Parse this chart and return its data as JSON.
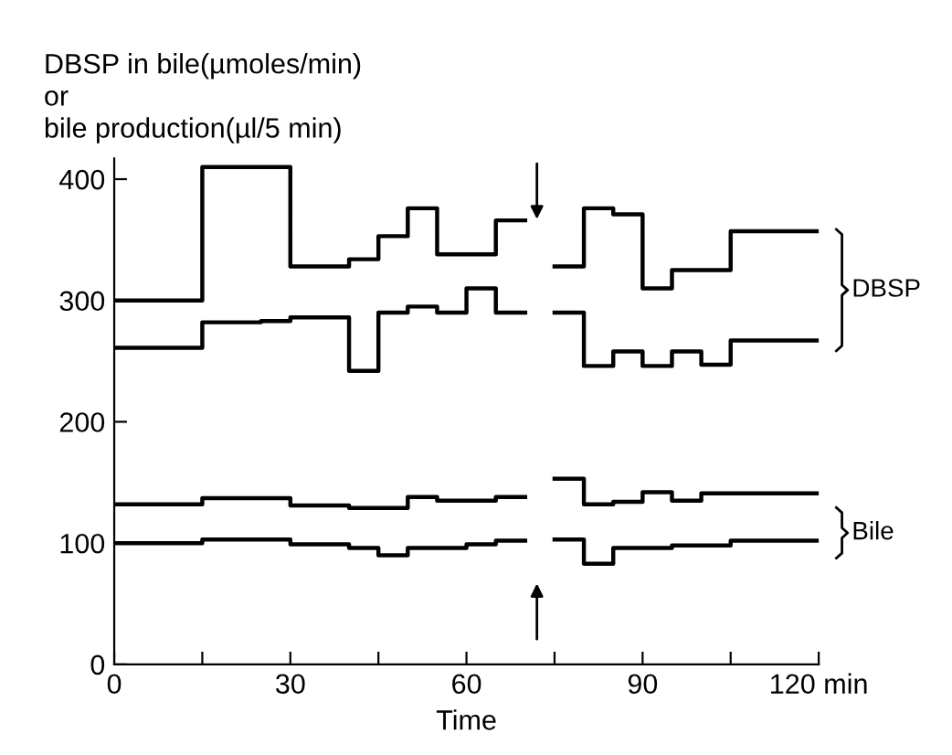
{
  "chart_data": {
    "type": "step",
    "xlabel": "Time",
    "ylabel": "DBSP in bile(µmoles/min)\nor\nbile production(µl/5 min)",
    "xlim": [
      0,
      120
    ],
    "ylim": [
      0,
      417
    ],
    "xticks": [
      0,
      {
        "value": 15,
        "label": null
      },
      30,
      {
        "value": 45,
        "label": null
      },
      60,
      {
        "value": 75,
        "label": null
      },
      90,
      {
        "value": 105,
        "label": null
      },
      {
        "value": 120,
        "label": "120 min"
      }
    ],
    "yticks": [
      0,
      100,
      200,
      300,
      400
    ],
    "grid": false,
    "legend": false,
    "line_style": "solid",
    "marker": "none",
    "series": [
      {
        "color": "#000000",
        "x": [
          0,
          15,
          30,
          40,
          45,
          50,
          55,
          65,
          70,
          75,
          80,
          85,
          90,
          95,
          105,
          120
        ],
        "values": [
          300,
          410,
          328,
          334,
          353,
          376,
          338,
          366,
          null,
          328,
          376,
          371,
          310,
          325,
          357,
          357
        ]
      },
      {
        "color": "#000000",
        "x": [
          0,
          15,
          25,
          30,
          40,
          45,
          50,
          55,
          60,
          65,
          70,
          75,
          80,
          85,
          90,
          95,
          100,
          105,
          120
        ],
        "values": [
          261,
          282,
          283,
          286,
          242,
          290,
          295,
          290,
          310,
          290,
          null,
          290,
          246,
          258,
          246,
          258,
          247,
          267,
          267
        ]
      },
      {
        "color": "#000000",
        "x": [
          0,
          15,
          30,
          40,
          50,
          55,
          65,
          70,
          75,
          80,
          85,
          90,
          95,
          100,
          120
        ],
        "values": [
          132,
          137,
          131,
          129,
          138,
          135,
          138,
          null,
          153,
          132,
          134,
          142,
          135,
          141,
          141
        ]
      },
      {
        "color": "#000000",
        "x": [
          0,
          15,
          30,
          40,
          45,
          50,
          60,
          65,
          70,
          75,
          80,
          85,
          95,
          105,
          120
        ],
        "values": [
          100,
          103,
          99,
          96,
          90,
          96,
          99,
          102,
          null,
          103,
          83,
          96,
          98,
          102,
          102
        ]
      }
    ],
    "annotations": [
      "DBSP",
      "Bile"
    ]
  }
}
